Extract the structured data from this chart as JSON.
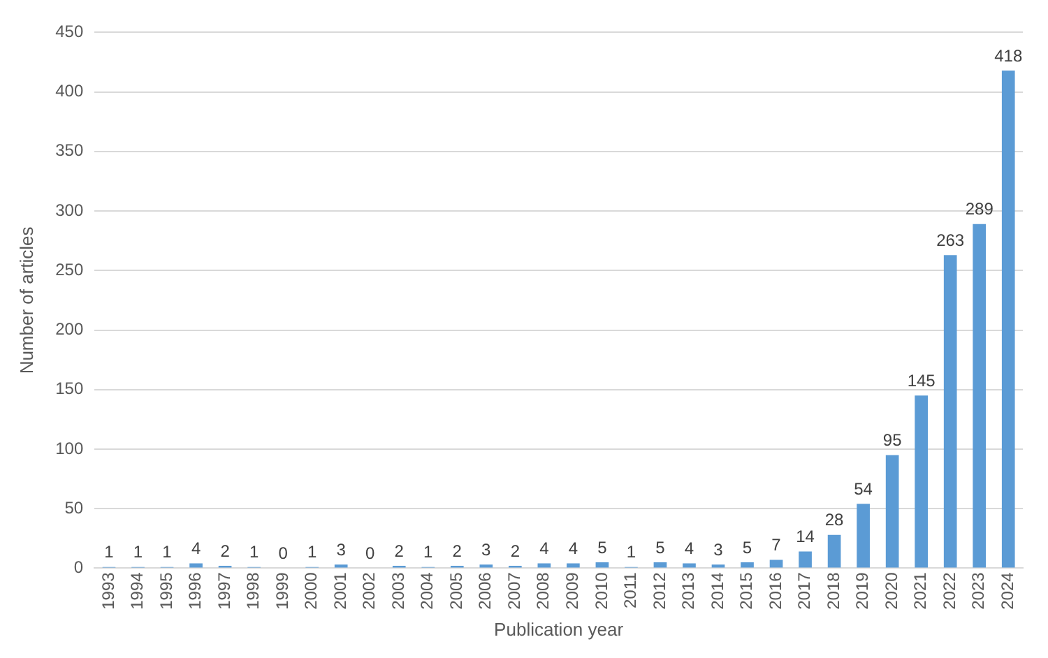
{
  "chart_data": {
    "type": "bar",
    "xlabel": "Publication year",
    "ylabel": "Number of articles",
    "categories": [
      "1993",
      "1994",
      "1995",
      "1996",
      "1997",
      "1998",
      "1999",
      "2000",
      "2001",
      "2002",
      "2003",
      "2004",
      "2005",
      "2006",
      "2007",
      "2008",
      "2009",
      "2010",
      "2011",
      "2012",
      "2013",
      "2014",
      "2015",
      "2016",
      "2017",
      "2018",
      "2019",
      "2020",
      "2021",
      "2022",
      "2023",
      "2024"
    ],
    "values": [
      1,
      1,
      1,
      4,
      2,
      1,
      0,
      1,
      3,
      0,
      2,
      1,
      2,
      3,
      2,
      4,
      4,
      5,
      1,
      5,
      4,
      3,
      5,
      7,
      14,
      28,
      54,
      95,
      145,
      263,
      289,
      418
    ],
    "color": "#5b9bd5",
    "ylim": [
      0,
      450
    ],
    "yticks": [
      0,
      50,
      100,
      150,
      200,
      250,
      300,
      350,
      400,
      450
    ],
    "grid": "y",
    "data_labels": true,
    "legend": false
  }
}
